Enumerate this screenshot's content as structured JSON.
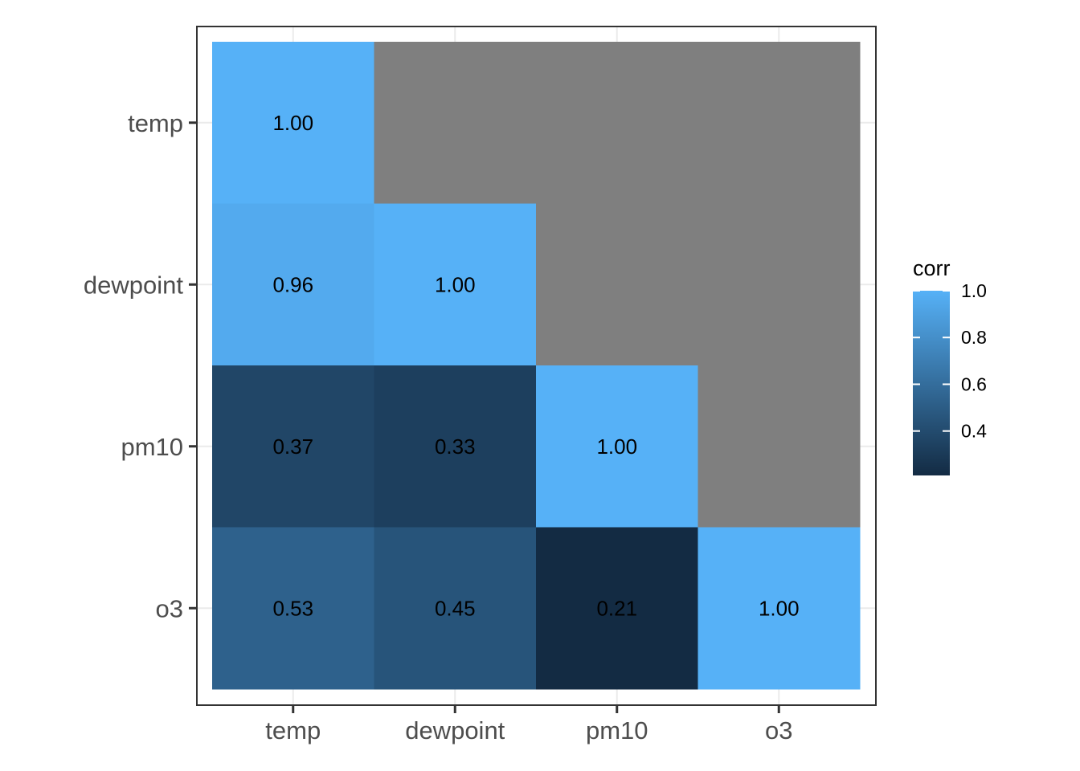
{
  "chart_data": {
    "type": "heatmap",
    "title": "",
    "xlabel": "",
    "ylabel": "",
    "x_categories": [
      "temp",
      "dewpoint",
      "pm10",
      "o3"
    ],
    "y_categories": [
      "temp",
      "dewpoint",
      "pm10",
      "o3"
    ],
    "cells": [
      {
        "x": "temp",
        "y": "temp",
        "value": 1.0,
        "label": "1.00"
      },
      {
        "x": "temp",
        "y": "dewpoint",
        "value": 0.96,
        "label": "0.96"
      },
      {
        "x": "dewpoint",
        "y": "dewpoint",
        "value": 1.0,
        "label": "1.00"
      },
      {
        "x": "temp",
        "y": "pm10",
        "value": 0.37,
        "label": "0.37"
      },
      {
        "x": "dewpoint",
        "y": "pm10",
        "value": 0.33,
        "label": "0.33"
      },
      {
        "x": "pm10",
        "y": "pm10",
        "value": 1.0,
        "label": "1.00"
      },
      {
        "x": "temp",
        "y": "o3",
        "value": 0.53,
        "label": "0.53"
      },
      {
        "x": "dewpoint",
        "y": "o3",
        "value": 0.45,
        "label": "0.45"
      },
      {
        "x": "pm10",
        "y": "o3",
        "value": 0.21,
        "label": "0.21"
      },
      {
        "x": "o3",
        "y": "o3",
        "value": 1.0,
        "label": "1.00"
      }
    ],
    "na_color": "#7f7f7f",
    "colorscale": {
      "low": "#132b43",
      "high": "#56b1f7",
      "range": [
        0.21,
        1.0
      ]
    },
    "legend": {
      "title": "corr",
      "position": "right",
      "ticks": [
        {
          "value": 1.0,
          "label": "1.0"
        },
        {
          "value": 0.8,
          "label": "0.8"
        },
        {
          "value": 0.6,
          "label": "0.6"
        },
        {
          "value": 0.4,
          "label": "0.4"
        }
      ]
    },
    "grid": true
  }
}
